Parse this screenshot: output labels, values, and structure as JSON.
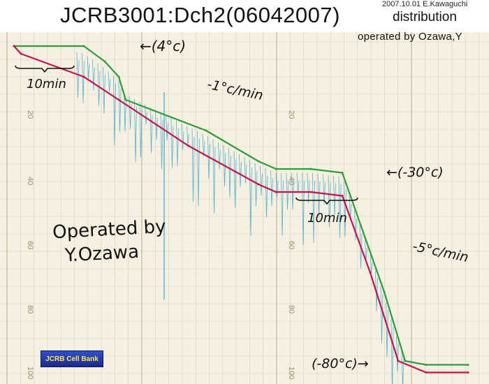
{
  "header": {
    "title": "JCRB3001:Dch2(06042007)",
    "subtitle": "distribution",
    "credit": "2007.10.01 E.Kawaguchi",
    "operator": "operated by Ozawa,Y"
  },
  "annotations": {
    "start_temp": "←(4°c)",
    "interval_1": "10min",
    "rate_1": "-1°c/min",
    "hold_temp": "←(-30°c)",
    "interval_2": "10min",
    "rate_2": "-5°c/min",
    "final_temp": "(-80°c)→"
  },
  "signature": {
    "line1": "Operated by",
    "line2": "Y.Ozawa"
  },
  "logo": {
    "text": "JCRB Cell Bank"
  },
  "colors": {
    "paper": "#f5f0e1",
    "grid": "#c9b89a",
    "chamber_trace": "#3aa6d0",
    "green_trace": "#2e9d3a",
    "red_trace": "#c8104e",
    "logo_bg": "#2f4fc9"
  },
  "chart_data": {
    "type": "line",
    "x_unit": "min",
    "y_scale_labels": [
      "20",
      "40",
      "60",
      "80",
      "100"
    ],
    "series": [
      {
        "points": [
          [
            0,
            4
          ],
          [
            20,
            4
          ],
          [
            26,
            0
          ],
          [
            30,
            -4
          ],
          [
            32,
            -10
          ],
          [
            55,
            -18
          ],
          [
            70,
            -26
          ],
          [
            75,
            -28
          ],
          [
            85,
            -28
          ],
          [
            94,
            -29
          ],
          [
            106,
            -60
          ],
          [
            112,
            -78
          ],
          [
            118,
            -79
          ],
          [
            130,
            -79
          ]
        ]
      },
      {
        "points": [
          [
            0,
            4
          ],
          [
            2,
            2
          ],
          [
            20,
            -4
          ],
          [
            30,
            -10
          ],
          [
            50,
            -22
          ],
          [
            70,
            -32
          ],
          [
            75,
            -34
          ],
          [
            85,
            -34
          ],
          [
            94,
            -35
          ],
          [
            102,
            -55
          ],
          [
            110,
            -78
          ],
          [
            118,
            -81
          ],
          [
            130,
            -81
          ]
        ]
      }
    ],
    "fluctuating_trace": {
      "spike_intervals_min": 1.5,
      "spike_depth_range": [
        2,
        18
      ]
    }
  }
}
